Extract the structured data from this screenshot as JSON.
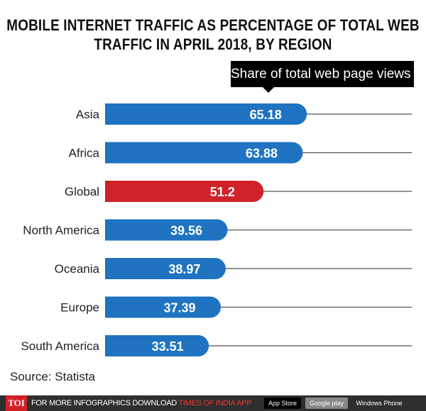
{
  "chart_data": {
    "type": "bar",
    "orientation": "horizontal",
    "title": "MOBILE INTERNET TRAFFIC AS PERCENTAGE OF TOTAL  WEB TRAFFIC IN APRIL 2018, BY REGION",
    "unit_label": "Share of total web page views (%)",
    "categories": [
      "Asia",
      "Africa",
      "Global",
      "North America",
      "Oceania",
      "Europe",
      "South America"
    ],
    "values": [
      65.18,
      63.88,
      51.2,
      39.56,
      38.97,
      37.39,
      33.51
    ],
    "value_labels": [
      "65.18",
      "63.88",
      "51.2",
      "39.56",
      "38.97",
      "37.39",
      "33.51"
    ],
    "colors": [
      "#1f73c1",
      "#1f73c1",
      "#d0222a",
      "#1f73c1",
      "#1f73c1",
      "#1f73c1",
      "#1f73c1"
    ],
    "grid": false
  },
  "source": "Source: Statista",
  "footer": {
    "logo": "TOI",
    "promo": "FOR MORE  INFOGRAPHICS DOWNLOAD ",
    "promo_highlight": "TIMES OF INDIA  APP",
    "app_store": "App Store",
    "google_play": "Google play",
    "windows": "Windows Phone"
  }
}
